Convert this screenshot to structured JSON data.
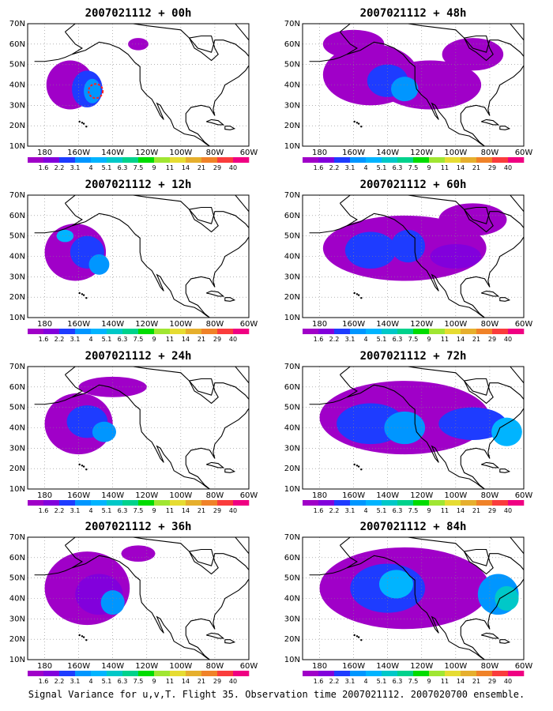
{
  "figure": {
    "caption": "Signal Variance for u,v,T. Flight 35. Observation time 2007021112. 2007020700 ensemble."
  },
  "colorbar": {
    "levels": [
      "1.6",
      "2.2",
      "3.1",
      "4",
      "5.1",
      "6.3",
      "7.5",
      "9",
      "11",
      "14",
      "21",
      "29",
      "40"
    ],
    "colors": [
      "#a000c8",
      "#8200dc",
      "#1e3cff",
      "#0096ff",
      "#00b4ff",
      "#00c8c8",
      "#00d28c",
      "#00dc00",
      "#a0e632",
      "#e6dc32",
      "#e6af2d",
      "#f08228",
      "#fa3c3c",
      "#f00082"
    ]
  },
  "axes": {
    "lon_ticks": [
      "180",
      "160W",
      "140W",
      "120W",
      "100W",
      "80W",
      "60W"
    ],
    "lat_ticks": [
      "10N",
      "20N",
      "30N",
      "40N",
      "50N",
      "60N",
      "70N"
    ]
  },
  "panels": [
    {
      "id": "p00",
      "title": "2007021112 + 00h",
      "blobs": [
        {
          "lon": -165,
          "lat": 40,
          "rlon": 14,
          "rlat": 12,
          "c": 0
        },
        {
          "lon": -155,
          "lat": 38,
          "rlon": 9,
          "rlat": 9,
          "c": 2
        },
        {
          "lon": -152,
          "lat": 37,
          "rlon": 5,
          "rlat": 6,
          "c": 3
        },
        {
          "lon": -125,
          "lat": 60,
          "rlon": 6,
          "rlat": 3,
          "c": 0
        }
      ],
      "marker": {
        "lon": -150,
        "lat": 37
      }
    },
    {
      "id": "p48",
      "title": "2007021112 + 48h",
      "blobs": [
        {
          "lon": -150,
          "lat": 45,
          "rlon": 28,
          "rlat": 15,
          "c": 0
        },
        {
          "lon": -115,
          "lat": 40,
          "rlon": 30,
          "rlat": 12,
          "c": 0
        },
        {
          "lon": -140,
          "lat": 42,
          "rlon": 12,
          "rlat": 8,
          "c": 2
        },
        {
          "lon": -130,
          "lat": 38,
          "rlon": 8,
          "rlat": 6,
          "c": 3
        },
        {
          "lon": -160,
          "lat": 60,
          "rlon": 18,
          "rlat": 7,
          "c": 0
        },
        {
          "lon": -90,
          "lat": 55,
          "rlon": 18,
          "rlat": 8,
          "c": 0
        }
      ]
    },
    {
      "id": "p12",
      "title": "2007021112 + 12h",
      "blobs": [
        {
          "lon": -162,
          "lat": 42,
          "rlon": 18,
          "rlat": 14,
          "c": 0
        },
        {
          "lon": -155,
          "lat": 42,
          "rlon": 10,
          "rlat": 8,
          "c": 2
        },
        {
          "lon": -148,
          "lat": 36,
          "rlon": 6,
          "rlat": 5,
          "c": 3
        },
        {
          "lon": -168,
          "lat": 50,
          "rlon": 5,
          "rlat": 3,
          "c": 4
        }
      ]
    },
    {
      "id": "p60",
      "title": "2007021112 + 60h",
      "blobs": [
        {
          "lon": -130,
          "lat": 44,
          "rlon": 48,
          "rlat": 16,
          "c": 0
        },
        {
          "lon": -150,
          "lat": 43,
          "rlon": 15,
          "rlat": 9,
          "c": 2
        },
        {
          "lon": -128,
          "lat": 45,
          "rlon": 10,
          "rlat": 8,
          "c": 2
        },
        {
          "lon": -90,
          "lat": 58,
          "rlon": 20,
          "rlat": 8,
          "c": 0
        },
        {
          "lon": -100,
          "lat": 40,
          "rlon": 15,
          "rlat": 6,
          "c": 1
        }
      ]
    },
    {
      "id": "p24",
      "title": "2007021112 + 24h",
      "blobs": [
        {
          "lon": -160,
          "lat": 42,
          "rlon": 20,
          "rlat": 15,
          "c": 0
        },
        {
          "lon": -155,
          "lat": 43,
          "rlon": 12,
          "rlat": 8,
          "c": 2
        },
        {
          "lon": -145,
          "lat": 38,
          "rlon": 7,
          "rlat": 5,
          "c": 3
        },
        {
          "lon": -140,
          "lat": 60,
          "rlon": 20,
          "rlat": 5,
          "c": 0
        }
      ]
    },
    {
      "id": "p72",
      "title": "2007021112 + 72h",
      "blobs": [
        {
          "lon": -130,
          "lat": 45,
          "rlon": 50,
          "rlat": 18,
          "c": 0
        },
        {
          "lon": -150,
          "lat": 42,
          "rlon": 20,
          "rlat": 10,
          "c": 2
        },
        {
          "lon": -130,
          "lat": 40,
          "rlon": 12,
          "rlat": 8,
          "c": 3
        },
        {
          "lon": -90,
          "lat": 42,
          "rlon": 20,
          "rlat": 8,
          "c": 2
        },
        {
          "lon": -70,
          "lat": 38,
          "rlon": 9,
          "rlat": 7,
          "c": 4
        }
      ]
    },
    {
      "id": "p36",
      "title": "2007021112 + 36h",
      "blobs": [
        {
          "lon": -155,
          "lat": 45,
          "rlon": 25,
          "rlat": 18,
          "c": 0
        },
        {
          "lon": -148,
          "lat": 42,
          "rlon": 14,
          "rlat": 10,
          "c": 1
        },
        {
          "lon": -140,
          "lat": 38,
          "rlon": 7,
          "rlat": 6,
          "c": 3
        },
        {
          "lon": -125,
          "lat": 62,
          "rlon": 10,
          "rlat": 4,
          "c": 0
        }
      ]
    },
    {
      "id": "p84",
      "title": "2007021112 + 84h",
      "blobs": [
        {
          "lon": -130,
          "lat": 45,
          "rlon": 50,
          "rlat": 20,
          "c": 0
        },
        {
          "lon": -140,
          "lat": 45,
          "rlon": 22,
          "rlat": 12,
          "c": 2
        },
        {
          "lon": -135,
          "lat": 47,
          "rlon": 10,
          "rlat": 7,
          "c": 4
        },
        {
          "lon": -75,
          "lat": 42,
          "rlon": 12,
          "rlat": 10,
          "c": 3
        },
        {
          "lon": -70,
          "lat": 40,
          "rlon": 7,
          "rlat": 6,
          "c": 5
        }
      ]
    }
  ]
}
